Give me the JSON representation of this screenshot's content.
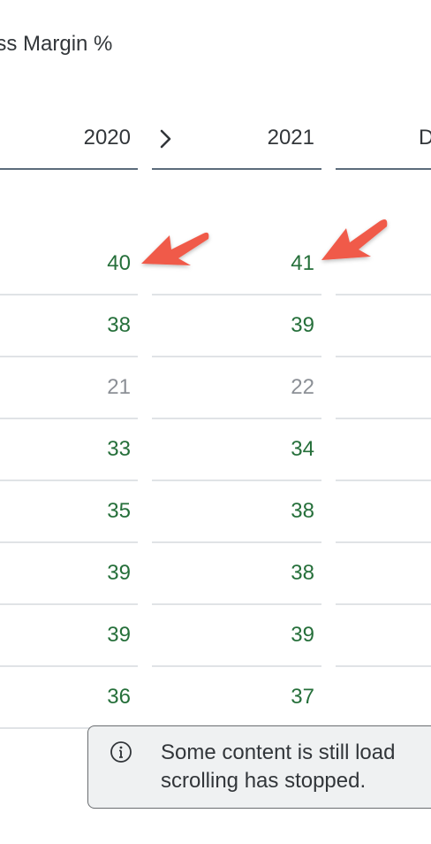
{
  "chart_title": "oss Margin %",
  "columns": [
    {
      "year": "2020"
    },
    {
      "year": "2021"
    },
    {
      "year": "D"
    }
  ],
  "rows": [
    {
      "v2020": "40",
      "v2021": "41",
      "status": "good"
    },
    {
      "v2020": "38",
      "v2021": "39",
      "status": "good"
    },
    {
      "v2020": "21",
      "v2021": "22",
      "status": "neutral"
    },
    {
      "v2020": "33",
      "v2021": "34",
      "status": "good"
    },
    {
      "v2020": "35",
      "v2021": "38",
      "status": "good"
    },
    {
      "v2020": "39",
      "v2021": "38",
      "status": "good"
    },
    {
      "v2020": "39",
      "v2021": "39",
      "status": "good"
    },
    {
      "v2020": "36",
      "v2021": "37",
      "status": "good"
    }
  ],
  "toast": {
    "icon": "info-icon",
    "line1": "Some content is still load",
    "line2": "scrolling has stopped."
  },
  "colors": {
    "good": "#256f3a",
    "neutral": "#8c9096",
    "arrow": "#f05a4a"
  }
}
